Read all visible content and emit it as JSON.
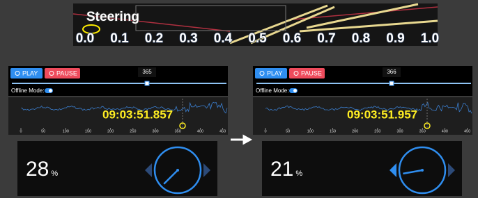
{
  "header": {
    "title": "Steering",
    "scale": [
      "0.0",
      "0.1",
      "0.2",
      "0.3",
      "0.4",
      "0.5",
      "0.6",
      "0.7",
      "0.8",
      "0.9",
      "1.0"
    ]
  },
  "panels": [
    {
      "play": "PLAY",
      "pause": "PAUSE",
      "frame": 365,
      "offline_label": "Offline Mode:",
      "timestamp": "09:03:51.857",
      "xlim": [
        0,
        460
      ],
      "xticks": [
        0,
        50,
        100,
        150,
        200,
        250,
        300,
        350,
        400,
        450
      ],
      "percent": 28,
      "unit": "%"
    },
    {
      "play": "PLAY",
      "pause": "PAUSE",
      "frame": 366,
      "offline_label": "Offline Mode:",
      "timestamp": "09:03:51.957",
      "xlim": [
        0,
        460
      ],
      "xticks": [
        0,
        50,
        100,
        150,
        200,
        250,
        300,
        350,
        400,
        450
      ],
      "percent": 21,
      "unit": "%"
    }
  ]
}
